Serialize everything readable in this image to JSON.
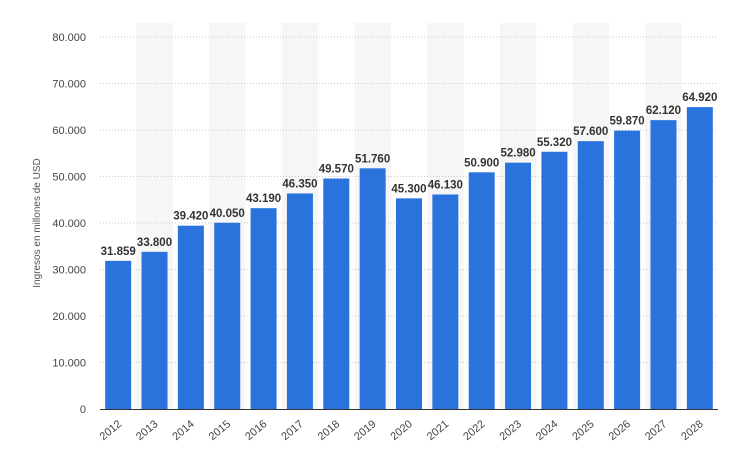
{
  "chart_data": {
    "type": "bar",
    "title": "",
    "xlabel": "",
    "ylabel": "Ingresos en millones de USD",
    "ylim": [
      0,
      80000
    ],
    "yticks": [
      0,
      10000,
      20000,
      30000,
      40000,
      50000,
      60000,
      70000,
      80000
    ],
    "ytick_labels": [
      "0",
      "10.000",
      "20.000",
      "30.000",
      "40.000",
      "50.000",
      "60.000",
      "70.000",
      "80.000"
    ],
    "grid": true,
    "bar_color": "#2a73dd",
    "categories": [
      "2012",
      "2013",
      "2014",
      "2015",
      "2016",
      "2017",
      "2018",
      "2019",
      "2020",
      "2021",
      "2022",
      "2023",
      "2024",
      "2025",
      "2026",
      "2027",
      "2028"
    ],
    "values": [
      31859,
      33800,
      39420,
      40050,
      43190,
      46350,
      49570,
      51760,
      45300,
      46130,
      50900,
      52980,
      55320,
      57600,
      59870,
      62120,
      64920
    ],
    "value_labels": [
      "31.859",
      "33.800",
      "39.420",
      "40.050",
      "43.190",
      "46.350",
      "49.570",
      "51.760",
      "45.300",
      "46.130",
      "50.900",
      "52.980",
      "55.320",
      "57.600",
      "59.870",
      "62.120",
      "64.920"
    ]
  }
}
